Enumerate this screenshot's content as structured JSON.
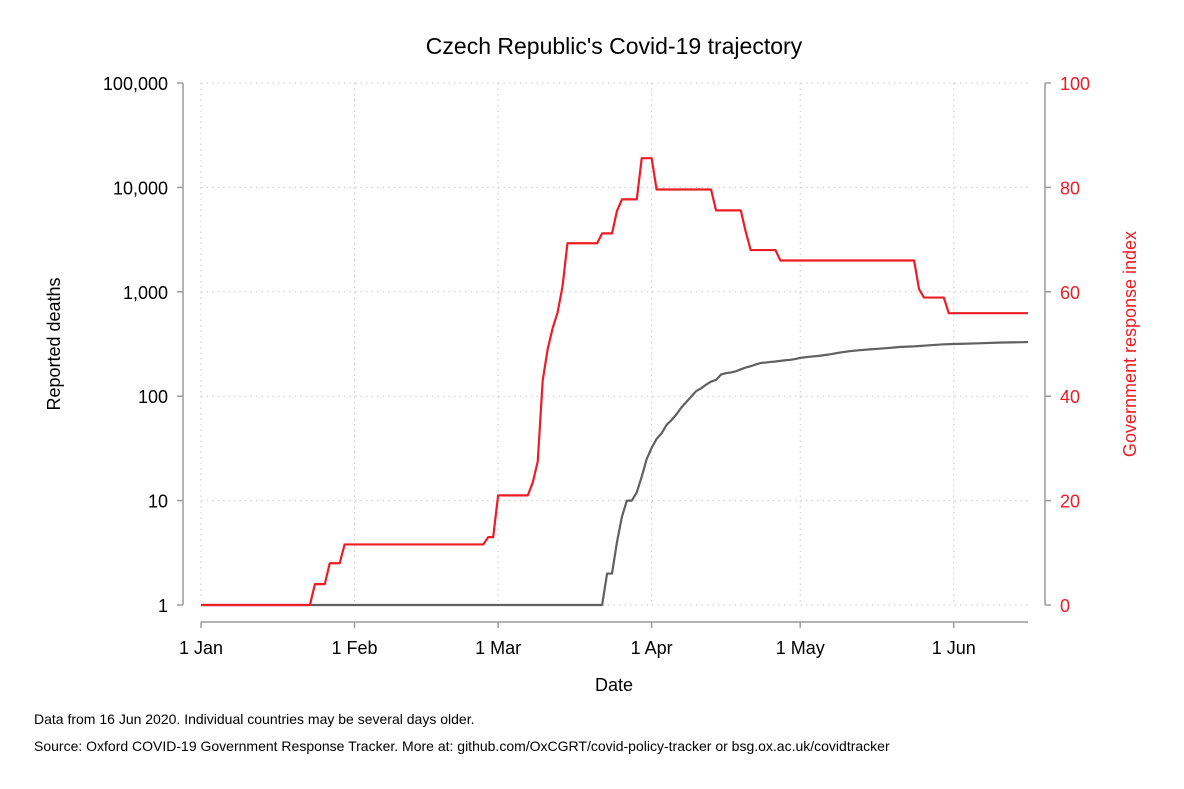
{
  "chart_data": {
    "type": "line",
    "title": "Czech Republic's Covid-19 trajectory",
    "xlabel": "Date",
    "ylabel": "Reported deaths",
    "y2label": "Government response index",
    "y_scale": "log",
    "ylim": [
      1,
      100000
    ],
    "y2lim": [
      0,
      100
    ],
    "xlim": [
      "2020-01-01",
      "2020-06-16"
    ],
    "grid": true,
    "x_ticks": [
      {
        "date": "2020-01-01",
        "label": "1 Jan"
      },
      {
        "date": "2020-02-01",
        "label": "1 Feb"
      },
      {
        "date": "2020-03-01",
        "label": "1 Mar"
      },
      {
        "date": "2020-04-01",
        "label": "1 Apr"
      },
      {
        "date": "2020-05-01",
        "label": "1 May"
      },
      {
        "date": "2020-06-01",
        "label": "1 Jun"
      }
    ],
    "y_ticks": [
      {
        "value": 1,
        "label": "1"
      },
      {
        "value": 10,
        "label": "10"
      },
      {
        "value": 100,
        "label": "100"
      },
      {
        "value": 1000,
        "label": "1,000"
      },
      {
        "value": 10000,
        "label": "10,000"
      },
      {
        "value": 100000,
        "label": "100,000"
      }
    ],
    "y2_ticks": [
      {
        "value": 0,
        "label": "0"
      },
      {
        "value": 20,
        "label": "20"
      },
      {
        "value": 40,
        "label": "40"
      },
      {
        "value": 60,
        "label": "60"
      },
      {
        "value": 80,
        "label": "80"
      },
      {
        "value": 100,
        "label": "100"
      }
    ],
    "series": [
      {
        "axis": "left",
        "color": "#606060",
        "points": [
          [
            "2020-01-01",
            1
          ],
          [
            "2020-03-22",
            1
          ],
          [
            "2020-03-23",
            2
          ],
          [
            "2020-03-24",
            2
          ],
          [
            "2020-03-25",
            4
          ],
          [
            "2020-03-26",
            7
          ],
          [
            "2020-03-27",
            10
          ],
          [
            "2020-03-28",
            10
          ],
          [
            "2020-03-29",
            12
          ],
          [
            "2020-03-30",
            17
          ],
          [
            "2020-03-31",
            25
          ],
          [
            "2020-04-01",
            32
          ],
          [
            "2020-04-02",
            39
          ],
          [
            "2020-04-03",
            44
          ],
          [
            "2020-04-04",
            53
          ],
          [
            "2020-04-05",
            59
          ],
          [
            "2020-04-06",
            67
          ],
          [
            "2020-04-07",
            78
          ],
          [
            "2020-04-08",
            88
          ],
          [
            "2020-04-09",
            99
          ],
          [
            "2020-04-10",
            112
          ],
          [
            "2020-04-11",
            119
          ],
          [
            "2020-04-12",
            129
          ],
          [
            "2020-04-13",
            138
          ],
          [
            "2020-04-14",
            143
          ],
          [
            "2020-04-15",
            161
          ],
          [
            "2020-04-16",
            166
          ],
          [
            "2020-04-17",
            169
          ],
          [
            "2020-04-18",
            173
          ],
          [
            "2020-04-19",
            181
          ],
          [
            "2020-04-20",
            188
          ],
          [
            "2020-04-21",
            194
          ],
          [
            "2020-04-22",
            201
          ],
          [
            "2020-04-23",
            208
          ],
          [
            "2020-04-24",
            210
          ],
          [
            "2020-04-25",
            213
          ],
          [
            "2020-04-26",
            215
          ],
          [
            "2020-04-27",
            218
          ],
          [
            "2020-04-28",
            221
          ],
          [
            "2020-04-29",
            223
          ],
          [
            "2020-04-30",
            227
          ],
          [
            "2020-05-01",
            233
          ],
          [
            "2020-05-03",
            239
          ],
          [
            "2020-05-05",
            244
          ],
          [
            "2020-05-07",
            252
          ],
          [
            "2020-05-09",
            262
          ],
          [
            "2020-05-11",
            270
          ],
          [
            "2020-05-13",
            276
          ],
          [
            "2020-05-15",
            281
          ],
          [
            "2020-05-17",
            285
          ],
          [
            "2020-05-19",
            290
          ],
          [
            "2020-05-21",
            296
          ],
          [
            "2020-05-24",
            300
          ],
          [
            "2020-05-27",
            307
          ],
          [
            "2020-05-30",
            314
          ],
          [
            "2020-06-02",
            317
          ],
          [
            "2020-06-06",
            321
          ],
          [
            "2020-06-10",
            326
          ],
          [
            "2020-06-16",
            330
          ]
        ]
      },
      {
        "axis": "right",
        "color": "#ee1c25",
        "points": [
          [
            "2020-01-01",
            0
          ],
          [
            "2020-01-23",
            0
          ],
          [
            "2020-01-24",
            4
          ],
          [
            "2020-01-25",
            4
          ],
          [
            "2020-01-26",
            4
          ],
          [
            "2020-01-27",
            8
          ],
          [
            "2020-01-28",
            8
          ],
          [
            "2020-01-29",
            8
          ],
          [
            "2020-01-30",
            11.6
          ],
          [
            "2020-02-27",
            11.6
          ],
          [
            "2020-02-28",
            13
          ],
          [
            "2020-02-29",
            13
          ],
          [
            "2020-03-01",
            21
          ],
          [
            "2020-03-07",
            21
          ],
          [
            "2020-03-08",
            23.5
          ],
          [
            "2020-03-09",
            27.5
          ],
          [
            "2020-03-10",
            43
          ],
          [
            "2020-03-11",
            49
          ],
          [
            "2020-03-12",
            53
          ],
          [
            "2020-03-13",
            56
          ],
          [
            "2020-03-14",
            61
          ],
          [
            "2020-03-15",
            69.3
          ],
          [
            "2020-03-21",
            69.3
          ],
          [
            "2020-03-22",
            71.2
          ],
          [
            "2020-03-24",
            71.2
          ],
          [
            "2020-03-25",
            75.5
          ],
          [
            "2020-03-26",
            77.7
          ],
          [
            "2020-03-29",
            77.7
          ],
          [
            "2020-03-30",
            85.6
          ],
          [
            "2020-04-01",
            85.6
          ],
          [
            "2020-04-02",
            79.6
          ],
          [
            "2020-04-13",
            79.6
          ],
          [
            "2020-04-14",
            75.6
          ],
          [
            "2020-04-19",
            75.6
          ],
          [
            "2020-04-20",
            71.5
          ],
          [
            "2020-04-21",
            68
          ],
          [
            "2020-04-26",
            68
          ],
          [
            "2020-04-27",
            66
          ],
          [
            "2020-05-24",
            66
          ],
          [
            "2020-05-25",
            60.5
          ],
          [
            "2020-05-26",
            58.9
          ],
          [
            "2020-05-30",
            58.9
          ],
          [
            "2020-05-31",
            55.9
          ],
          [
            "2020-06-16",
            55.9
          ]
        ]
      }
    ]
  },
  "footnotes": [
    "Data from 16 Jun 2020. Individual countries may be several days older.",
    "Source: Oxford COVID-19 Government Response Tracker. More at: github.com/OxCGRT/covid-policy-tracker or bsg.ox.ac.uk/covidtracker"
  ]
}
